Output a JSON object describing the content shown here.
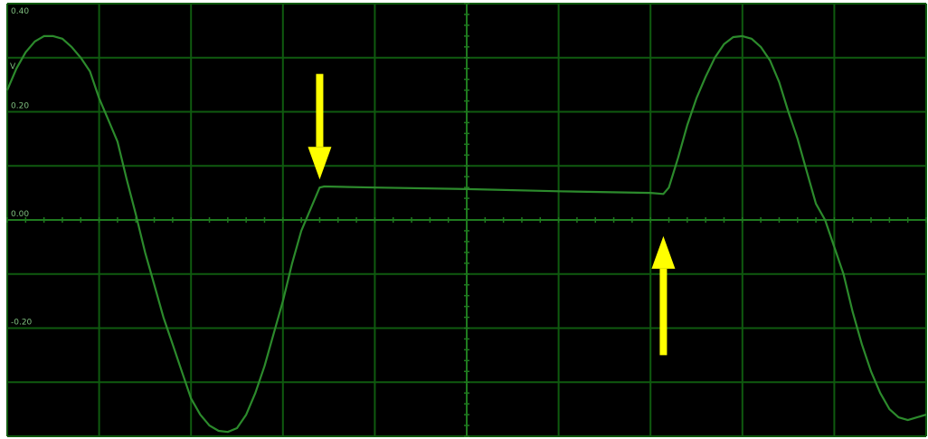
{
  "colors": {
    "background": "#000000",
    "frame": "#ffffff",
    "grid": "#0f5a0f",
    "grid_center": "#1f7a1f",
    "trace": "#2c8a2c",
    "label": "#7fbf7f",
    "arrow": "#ffff00"
  },
  "chart_data": {
    "type": "line",
    "title": "",
    "xlabel": "",
    "ylabel": "V",
    "ylim": [
      -0.4,
      0.4
    ],
    "xlim": [
      0,
      10
    ],
    "grid": true,
    "y_ticks": [
      {
        "value": 0.4,
        "label": "0.40"
      },
      {
        "value": 0.2,
        "label": "0.20"
      },
      {
        "value": 0.0,
        "label": "0.00"
      },
      {
        "value": -0.2,
        "label": "-0.20"
      }
    ],
    "series": [
      {
        "points": [
          [
            0.0,
            0.24
          ],
          [
            0.1,
            0.28
          ],
          [
            0.2,
            0.31
          ],
          [
            0.3,
            0.33
          ],
          [
            0.4,
            0.34
          ],
          [
            0.5,
            0.34
          ],
          [
            0.6,
            0.335
          ],
          [
            0.7,
            0.32
          ],
          [
            0.8,
            0.3
          ],
          [
            0.9,
            0.275
          ],
          [
            1.0,
            0.225
          ],
          [
            1.1,
            0.185
          ],
          [
            1.2,
            0.145
          ],
          [
            1.3,
            0.075
          ],
          [
            1.4,
            0.01
          ],
          [
            1.5,
            -0.06
          ],
          [
            1.6,
            -0.12
          ],
          [
            1.7,
            -0.18
          ],
          [
            1.8,
            -0.23
          ],
          [
            1.9,
            -0.28
          ],
          [
            2.0,
            -0.33
          ],
          [
            2.1,
            -0.36
          ],
          [
            2.2,
            -0.38
          ],
          [
            2.3,
            -0.39
          ],
          [
            2.4,
            -0.392
          ],
          [
            2.5,
            -0.385
          ],
          [
            2.6,
            -0.36
          ],
          [
            2.7,
            -0.32
          ],
          [
            2.8,
            -0.27
          ],
          [
            2.9,
            -0.21
          ],
          [
            3.0,
            -0.15
          ],
          [
            3.1,
            -0.08
          ],
          [
            3.2,
            -0.02
          ],
          [
            3.3,
            0.02
          ],
          [
            3.4,
            0.06
          ],
          [
            3.45,
            0.062
          ],
          [
            4.0,
            0.06
          ],
          [
            5.0,
            0.057
          ],
          [
            6.0,
            0.053
          ],
          [
            7.0,
            0.05
          ],
          [
            7.14,
            0.048
          ],
          [
            7.2,
            0.06
          ],
          [
            7.3,
            0.115
          ],
          [
            7.4,
            0.175
          ],
          [
            7.5,
            0.225
          ],
          [
            7.6,
            0.265
          ],
          [
            7.7,
            0.3
          ],
          [
            7.8,
            0.325
          ],
          [
            7.9,
            0.338
          ],
          [
            8.0,
            0.34
          ],
          [
            8.1,
            0.335
          ],
          [
            8.2,
            0.32
          ],
          [
            8.3,
            0.295
          ],
          [
            8.4,
            0.255
          ],
          [
            8.5,
            0.2
          ],
          [
            8.6,
            0.15
          ],
          [
            8.7,
            0.09
          ],
          [
            8.8,
            0.03
          ],
          [
            8.9,
            0.0
          ],
          [
            9.0,
            -0.05
          ],
          [
            9.1,
            -0.1
          ],
          [
            9.2,
            -0.17
          ],
          [
            9.3,
            -0.23
          ],
          [
            9.4,
            -0.28
          ],
          [
            9.5,
            -0.32
          ],
          [
            9.6,
            -0.35
          ],
          [
            9.7,
            -0.365
          ],
          [
            9.8,
            -0.37
          ],
          [
            9.9,
            -0.365
          ],
          [
            10.0,
            -0.36
          ]
        ]
      }
    ],
    "annotations": [
      {
        "type": "arrow",
        "direction": "down",
        "x": 3.4,
        "y_from": 0.27,
        "y_to": 0.075
      },
      {
        "type": "arrow",
        "direction": "up",
        "x": 7.14,
        "y_from": -0.25,
        "y_to": -0.03
      }
    ]
  }
}
